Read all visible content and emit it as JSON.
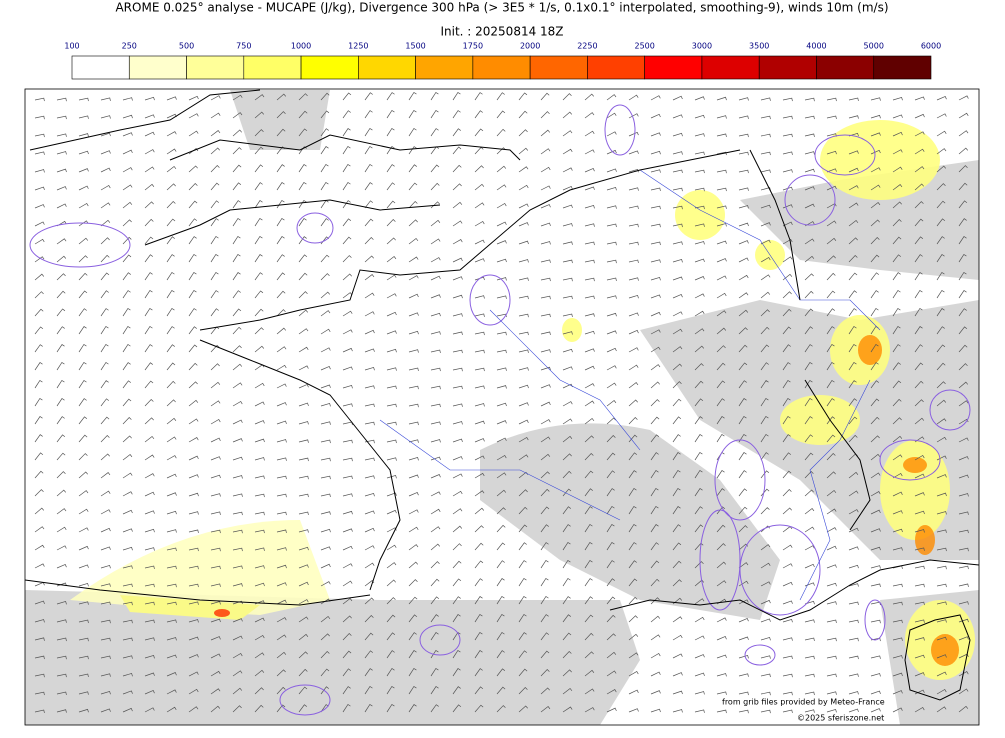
{
  "header": {
    "title": "AROME 0.025° analyse - MUCAPE (J/kg), Divergence 300 hPa (> 3E5 * 1/s, 0.1x0.1° interpolated, smoothing-9), winds 10m (m/s)",
    "init": "Init. : 20250814 18Z"
  },
  "colorbar": {
    "levels": [
      100,
      250,
      500,
      750,
      1000,
      1250,
      1500,
      1750,
      2000,
      2250,
      2500,
      3000,
      3500,
      4000,
      5000,
      6000
    ],
    "colors": [
      "#ffffff",
      "#ffffcc",
      "#ffff99",
      "#ffff66",
      "#ffff00",
      "#ffd700",
      "#ffa500",
      "#ff8c00",
      "#ff6600",
      "#ff4000",
      "#ff0000",
      "#dd0000",
      "#b00000",
      "#8b0000",
      "#600000"
    ]
  },
  "credits": {
    "source": "from grib files provided by Meteo-France",
    "copyright": "©2025 sferiszone.net"
  }
}
